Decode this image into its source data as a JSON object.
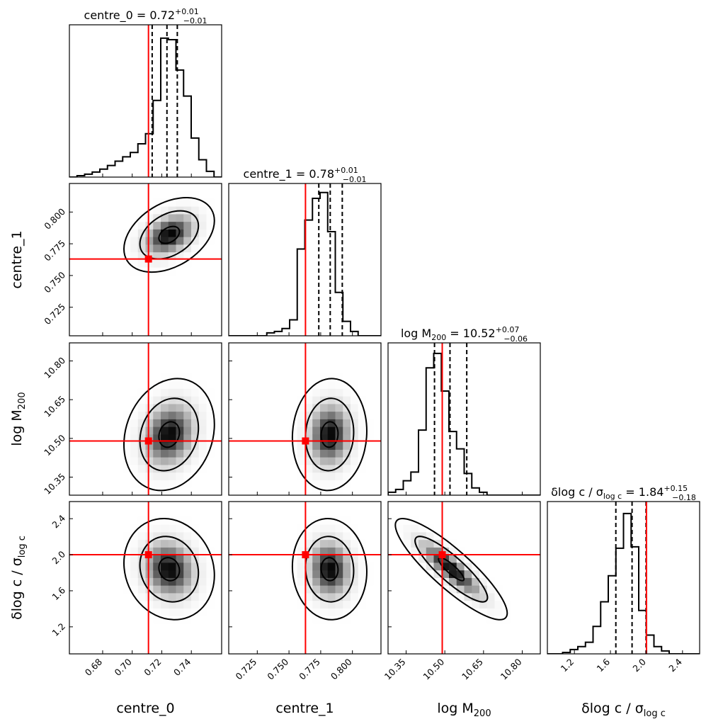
{
  "chart_data": {
    "type": "corner",
    "parameters": [
      {
        "key": "c0",
        "label": "centre_0",
        "truth": 0.711,
        "range": [
          0.6575,
          0.7605
        ],
        "ticks": [
          0.68,
          0.7,
          0.72,
          0.74
        ],
        "tick_labels": [
          "0.68",
          "0.70",
          "0.72",
          "0.74"
        ],
        "title": {
          "lhs": "centre_0 = 0.72",
          "plus": "+0.01",
          "minus": "−0.01"
        },
        "quantiles": [
          0.7135,
          0.7235,
          0.7305
        ],
        "hist": [
          0.0,
          0.01,
          0.02,
          0.035,
          0.055,
          0.08,
          0.11,
          0.14,
          0.17,
          0.23,
          0.3,
          0.53,
          0.96,
          0.95,
          0.74,
          0.56,
          0.27,
          0.12,
          0.04,
          0.0
        ]
      },
      {
        "key": "c1",
        "label": "centre_1",
        "truth": 0.763,
        "range": [
          0.7025,
          0.8225
        ],
        "ticks": [
          0.725,
          0.75,
          0.775,
          0.8
        ],
        "tick_labels": [
          "0.725",
          "0.750",
          "0.775",
          "0.800"
        ],
        "title": {
          "lhs": "centre_1 = 0.78",
          "plus": "+0.01",
          "minus": "−0.01"
        },
        "quantiles": [
          0.7735,
          0.7825,
          0.792
        ],
        "hist": [
          0.0,
          0.0,
          0.0,
          0.0,
          0.0,
          0.02,
          0.03,
          0.05,
          0.11,
          0.6,
          0.8,
          0.95,
          0.99,
          0.72,
          0.3,
          0.1,
          0.03,
          0.0,
          0.0,
          0.0
        ]
      },
      {
        "key": "m",
        "label": "log M200",
        "truth": 10.49,
        "range": [
          10.28,
          10.87
        ],
        "ticks": [
          10.35,
          10.5,
          10.65,
          10.8
        ],
        "tick_labels": [
          "10.35",
          "10.50",
          "10.65",
          "10.80"
        ],
        "title": {
          "lhs": "log M",
          "sub": "200",
          "eq": " = 10.52",
          "plus": "+0.07",
          "minus": "−0.06"
        },
        "quantiles": [
          10.46,
          10.52,
          10.585
        ],
        "hist": [
          0.02,
          0.04,
          0.1,
          0.16,
          0.45,
          0.88,
          0.98,
          0.72,
          0.44,
          0.32,
          0.15,
          0.05,
          0.02,
          0.0,
          0.0,
          0.0,
          0.0,
          0.0,
          0.0,
          0.0
        ]
      },
      {
        "key": "d",
        "label": "δlog c / σ log c",
        "truth": 2.0,
        "range": [
          0.9,
          2.59
        ],
        "ticks": [
          1.2,
          1.6,
          2.0,
          2.4
        ],
        "tick_labels": [
          "1.2",
          "1.6",
          "2.0",
          "2.4"
        ],
        "title": {
          "lhs": "δlog c / σ",
          "sub": "log c",
          "eq": " = 1.84",
          "plus": "+0.15",
          "minus": "−0.18"
        },
        "quantiles": [
          1.66,
          1.84,
          1.995
        ],
        "hist": [
          0.0,
          0.0,
          0.01,
          0.03,
          0.05,
          0.08,
          0.19,
          0.36,
          0.54,
          0.73,
          0.97,
          0.74,
          0.3,
          0.13,
          0.05,
          0.02,
          0.0,
          0.0,
          0.0,
          0.0
        ]
      }
    ],
    "pairs": [
      {
        "row": 1,
        "col": 0,
        "center": [
          0.725,
          0.782
        ],
        "sigma": [
          0.012,
          0.0115
        ],
        "rho": 0.38
      },
      {
        "row": 2,
        "col": 0,
        "center": [
          0.725,
          10.515
        ],
        "sigma": [
          0.012,
          0.085
        ],
        "rho": 0.18
      },
      {
        "row": 2,
        "col": 1,
        "center": [
          0.782,
          10.515
        ],
        "sigma": [
          0.0115,
          0.085
        ],
        "rho": 0.06
      },
      {
        "row": 3,
        "col": 0,
        "center": [
          0.725,
          1.84
        ],
        "sigma": [
          0.012,
          0.22
        ],
        "rho": -0.12
      },
      {
        "row": 3,
        "col": 1,
        "center": [
          0.782,
          1.84
        ],
        "sigma": [
          0.0115,
          0.22
        ],
        "rho": -0.05
      },
      {
        "row": 3,
        "col": 2,
        "center": [
          10.525,
          1.84
        ],
        "sigma": [
          0.085,
          0.22
        ],
        "rho": -0.87
      }
    ],
    "contour_levels": [
      1,
      2,
      3
    ],
    "truth_color": "#ff0000",
    "line_color": "#000000",
    "axis_labels": {
      "x": [
        "centre_0",
        "centre_1",
        "log M",
        "δlog c / σ"
      ],
      "x_subs": [
        "",
        "",
        "200",
        "log c"
      ],
      "y": [
        "centre_1",
        "log M",
        "δlog c / σ"
      ],
      "y_subs": [
        "",
        "200",
        "log c"
      ]
    }
  }
}
